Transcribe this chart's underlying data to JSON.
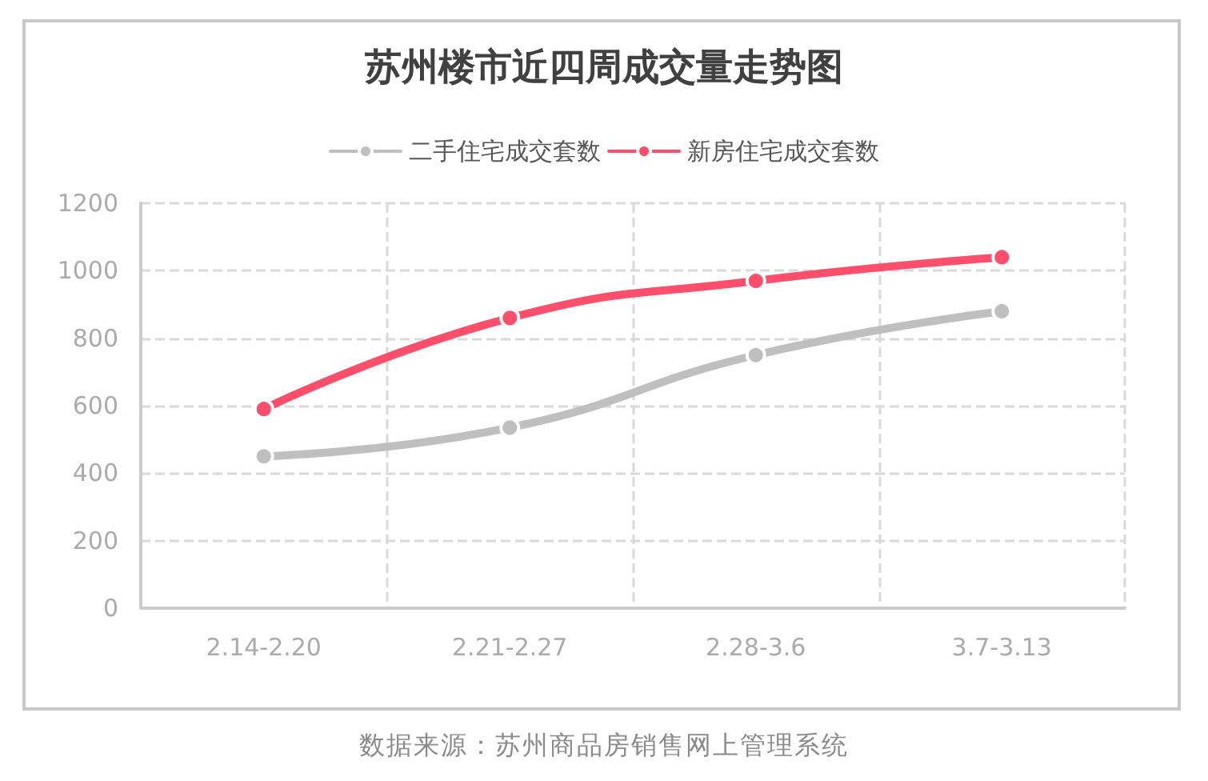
{
  "chart_data": {
    "type": "line",
    "title": "苏州楼市近四周成交量走势图",
    "categories": [
      "2.14-2.20",
      "2.21-2.27",
      "2.28-3.6",
      "3.7-3.13"
    ],
    "series": [
      {
        "name": "二手住宅成交套数",
        "color": "#bfbfbf",
        "values": [
          450,
          535,
          750,
          880
        ]
      },
      {
        "name": "新房住宅成交套数",
        "color": "#fd4e6b",
        "values": [
          590,
          860,
          970,
          1040
        ]
      }
    ],
    "ylim": [
      0,
      1200
    ],
    "yticks": [
      0,
      200,
      400,
      600,
      800,
      1000,
      1200
    ],
    "grid": true,
    "legend": "top",
    "marker": "circle",
    "line_style": "solid",
    "annotations": [
      "数据来源：苏州商品房销售网上管理系统"
    ]
  }
}
